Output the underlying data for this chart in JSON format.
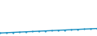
{
  "x": [
    2005,
    2006,
    2007,
    2008,
    2009,
    2010,
    2011,
    2012,
    2013,
    2014,
    2015,
    2016,
    2017,
    2018,
    2019,
    2020
  ],
  "y": [
    1.0,
    1.1,
    1.2,
    1.3,
    1.4,
    1.5,
    1.6,
    1.7,
    1.8,
    1.9,
    2.0,
    2.1,
    2.2,
    2.3,
    2.4,
    2.5
  ],
  "line_color": "#1a8fc1",
  "bg_color": "#ffffff",
  "ylim": [
    0,
    12
  ],
  "xlim": [
    2005,
    2020
  ],
  "linewidth": 1.0,
  "markersize": 1.5,
  "marker": "o"
}
